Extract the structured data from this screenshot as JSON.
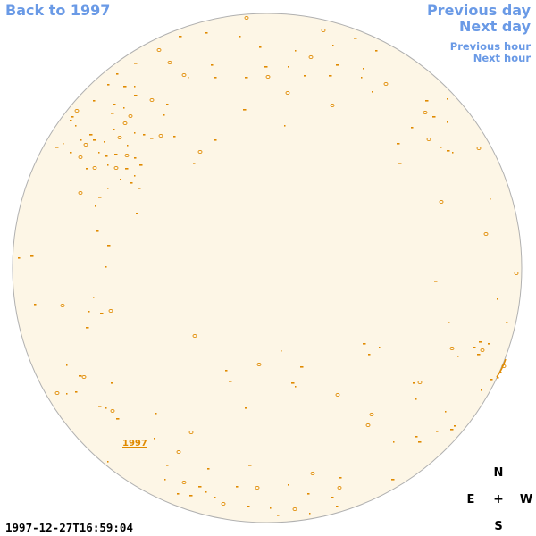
{
  "nav": {
    "back_label": "Back to 1997",
    "prev_day_label": "Previous day",
    "next_day_label": "Next day",
    "prev_hour_label": "Previous hour",
    "next_hour_label": "Next hour"
  },
  "compass": {
    "north": "N",
    "center": "+",
    "east": "E",
    "west": "W",
    "south": "S"
  },
  "timestamp": "1997-12-27T16:59:04",
  "region_label": "1997",
  "colors": {
    "disk_fill": "#fdf6e6",
    "disk_outline": "#b0b0b0",
    "feature": "#e08a00",
    "link": "#6a9ae6"
  }
}
